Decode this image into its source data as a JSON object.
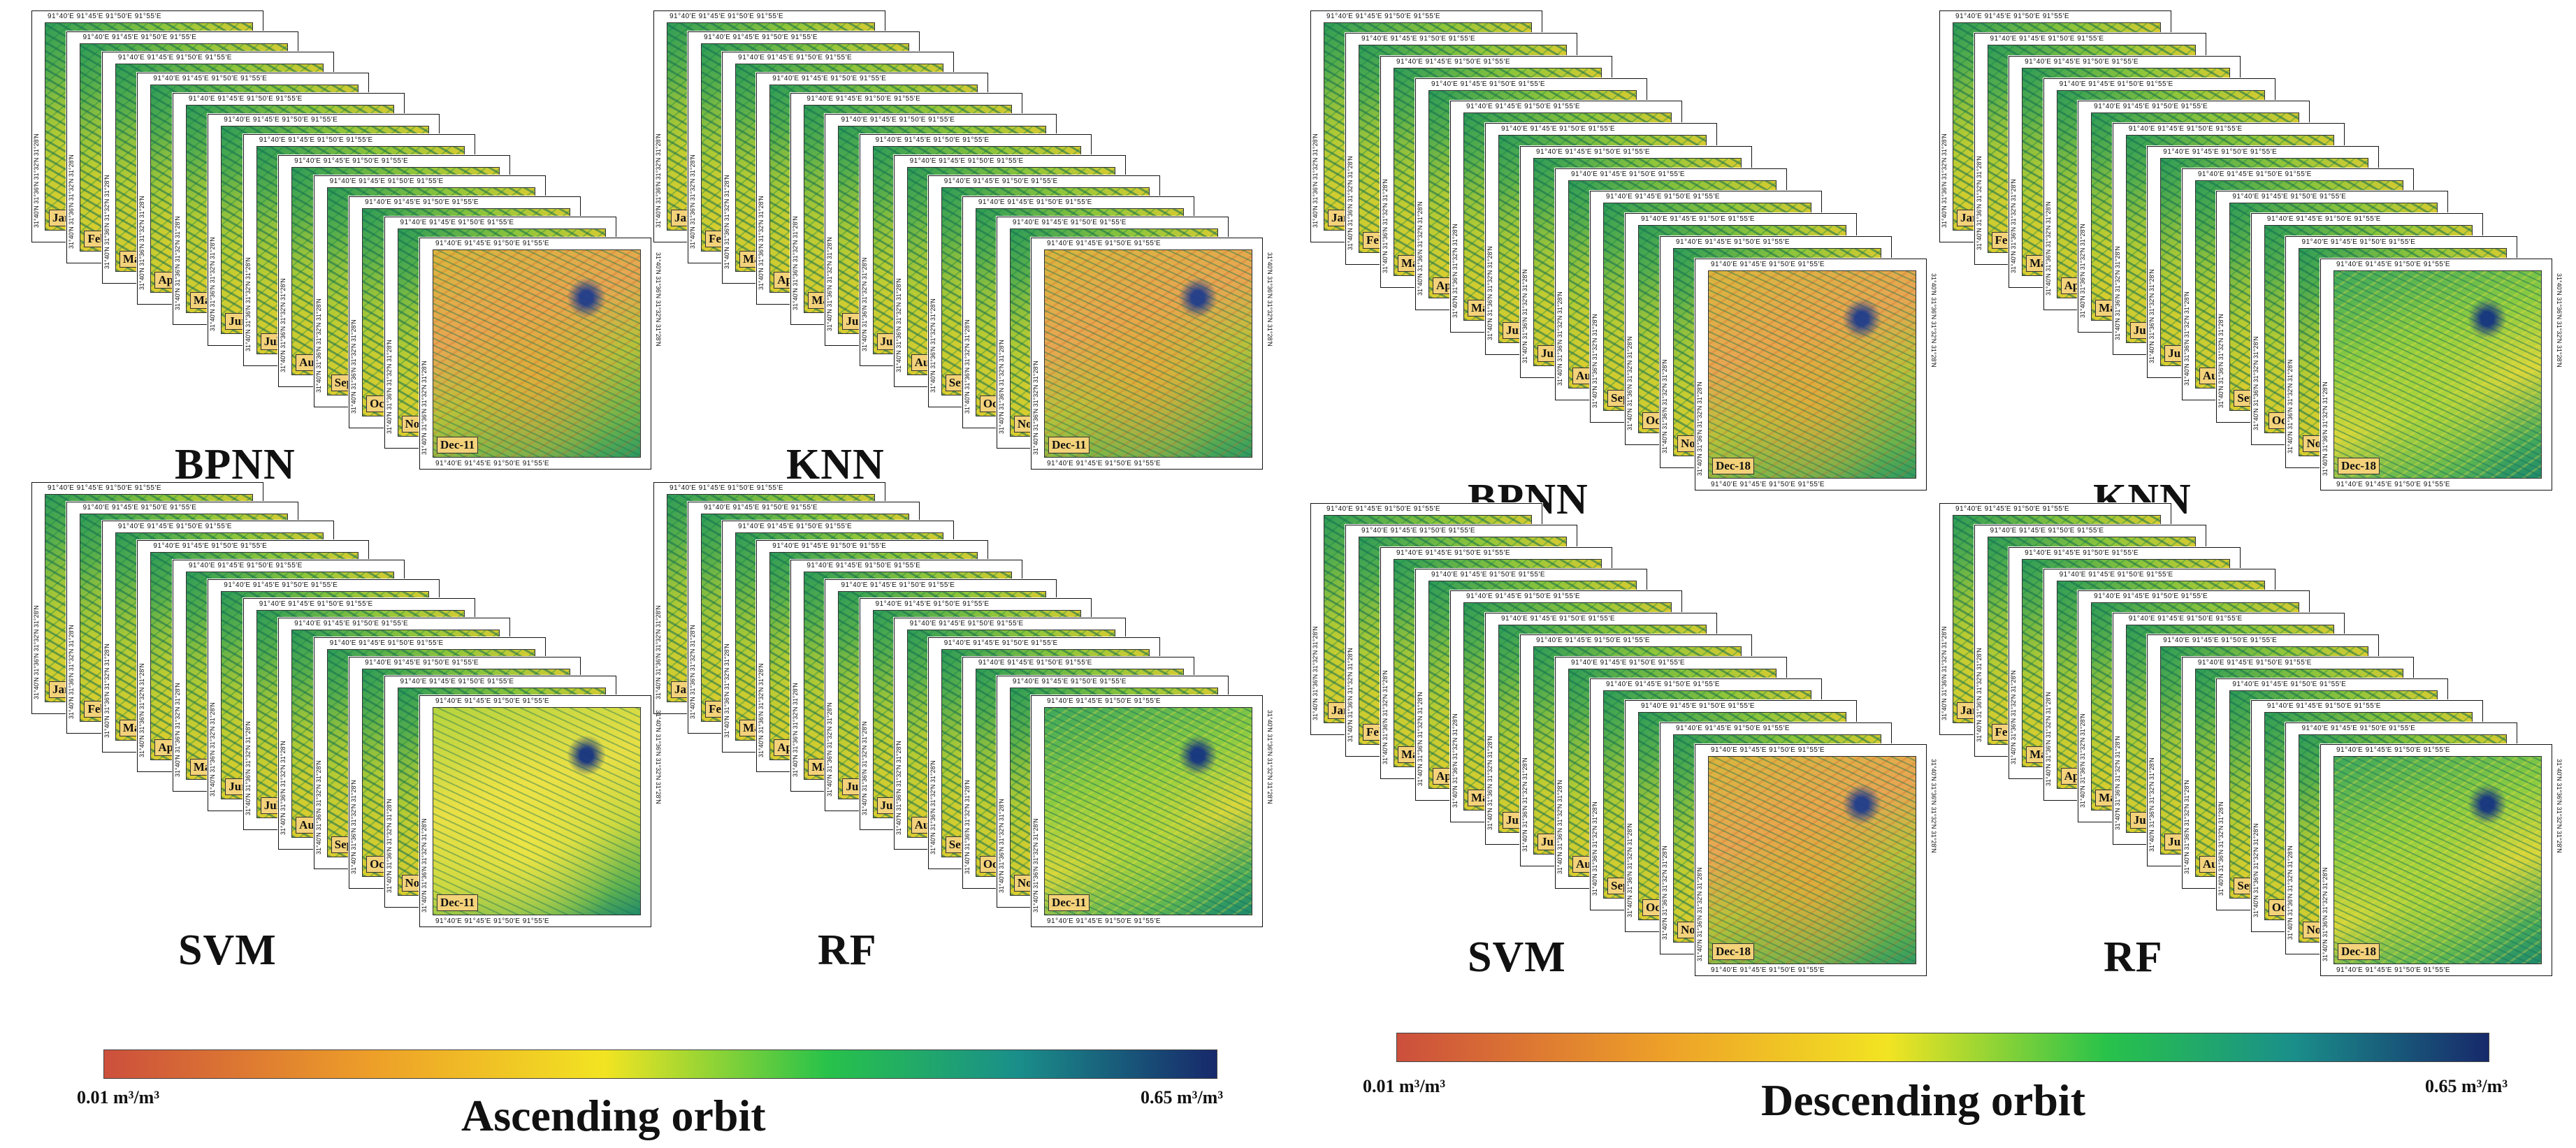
{
  "colors": {
    "cb_low": "#cc4f3c",
    "cb_orange": "#eea228",
    "cb_yellow": "#f2e422",
    "cb_green": "#28c24a",
    "cb_teal": "#1a8f8a",
    "cb_high": "#17296b"
  },
  "coords": {
    "top_ticks": "91°40′E   91°45′E   91°50′E   91°55′E",
    "left_ticks": "31°40′N   31°36′N   31°32′N   31°28′N"
  },
  "months": [
    "Jan",
    "Feb",
    "Mar",
    "Apr",
    "May",
    "Jun",
    "Jul",
    "Aug",
    "Sep",
    "Oct",
    "Nov"
  ],
  "ascending": {
    "title": "Ascending orbit",
    "front_label": "Dec-11",
    "colorbar_min": "0.01 m³/m³",
    "colorbar_max": "0.65 m³/m³",
    "panels": [
      {
        "model": "BPNN"
      },
      {
        "model": "KNN"
      },
      {
        "model": "SVM"
      },
      {
        "model": "RF"
      }
    ]
  },
  "descending": {
    "title": "Descending orbit",
    "front_label": "Dec-18",
    "colorbar_min": "0.01 m³/m³",
    "colorbar_max": "0.65 m³/m³",
    "panels": [
      {
        "model": "BPNN"
      },
      {
        "model": "KNN"
      },
      {
        "model": "SVM"
      },
      {
        "model": "RF"
      }
    ]
  }
}
